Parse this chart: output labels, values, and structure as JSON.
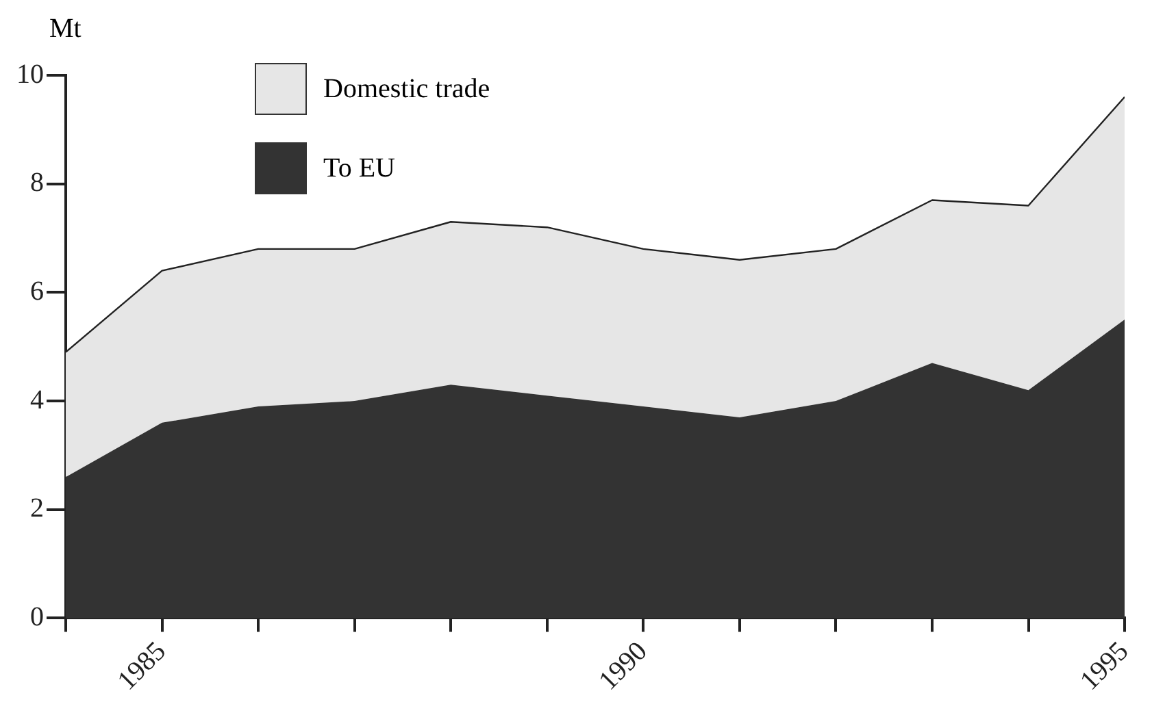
{
  "chart_data": {
    "type": "area",
    "ylabel": "Mt",
    "x": [
      1984,
      1985,
      1986,
      1987,
      1988,
      1989,
      1990,
      1991,
      1992,
      1993,
      1994,
      1995
    ],
    "series": [
      {
        "name": "To EU",
        "color": "#333333",
        "values": [
          2.6,
          3.6,
          3.9,
          4.0,
          4.3,
          4.1,
          3.9,
          3.7,
          4.0,
          4.7,
          4.2,
          5.5
        ]
      },
      {
        "name": "Domestic trade",
        "color": "#e6e6e6",
        "values": [
          2.3,
          2.8,
          2.9,
          2.8,
          3.0,
          3.1,
          2.9,
          2.9,
          2.8,
          3.0,
          3.4,
          4.1
        ]
      }
    ],
    "stacked": true,
    "xlim": [
      1984,
      1995
    ],
    "xticks": [
      {
        "value": 1984,
        "label": null
      },
      1985,
      {
        "value": 1986,
        "label": null
      },
      {
        "value": 1987,
        "label": null
      },
      {
        "value": 1988,
        "label": null
      },
      {
        "value": 1989,
        "label": null
      },
      1990,
      {
        "value": 1991,
        "label": null
      },
      {
        "value": 1992,
        "label": null
      },
      {
        "value": 1993,
        "label": null
      },
      {
        "value": 1994,
        "label": null
      },
      1995
    ],
    "ylim": [
      0,
      10
    ],
    "yticks": [
      0,
      2,
      4,
      6,
      8,
      10
    ],
    "grid": false,
    "legend": "top left"
  }
}
